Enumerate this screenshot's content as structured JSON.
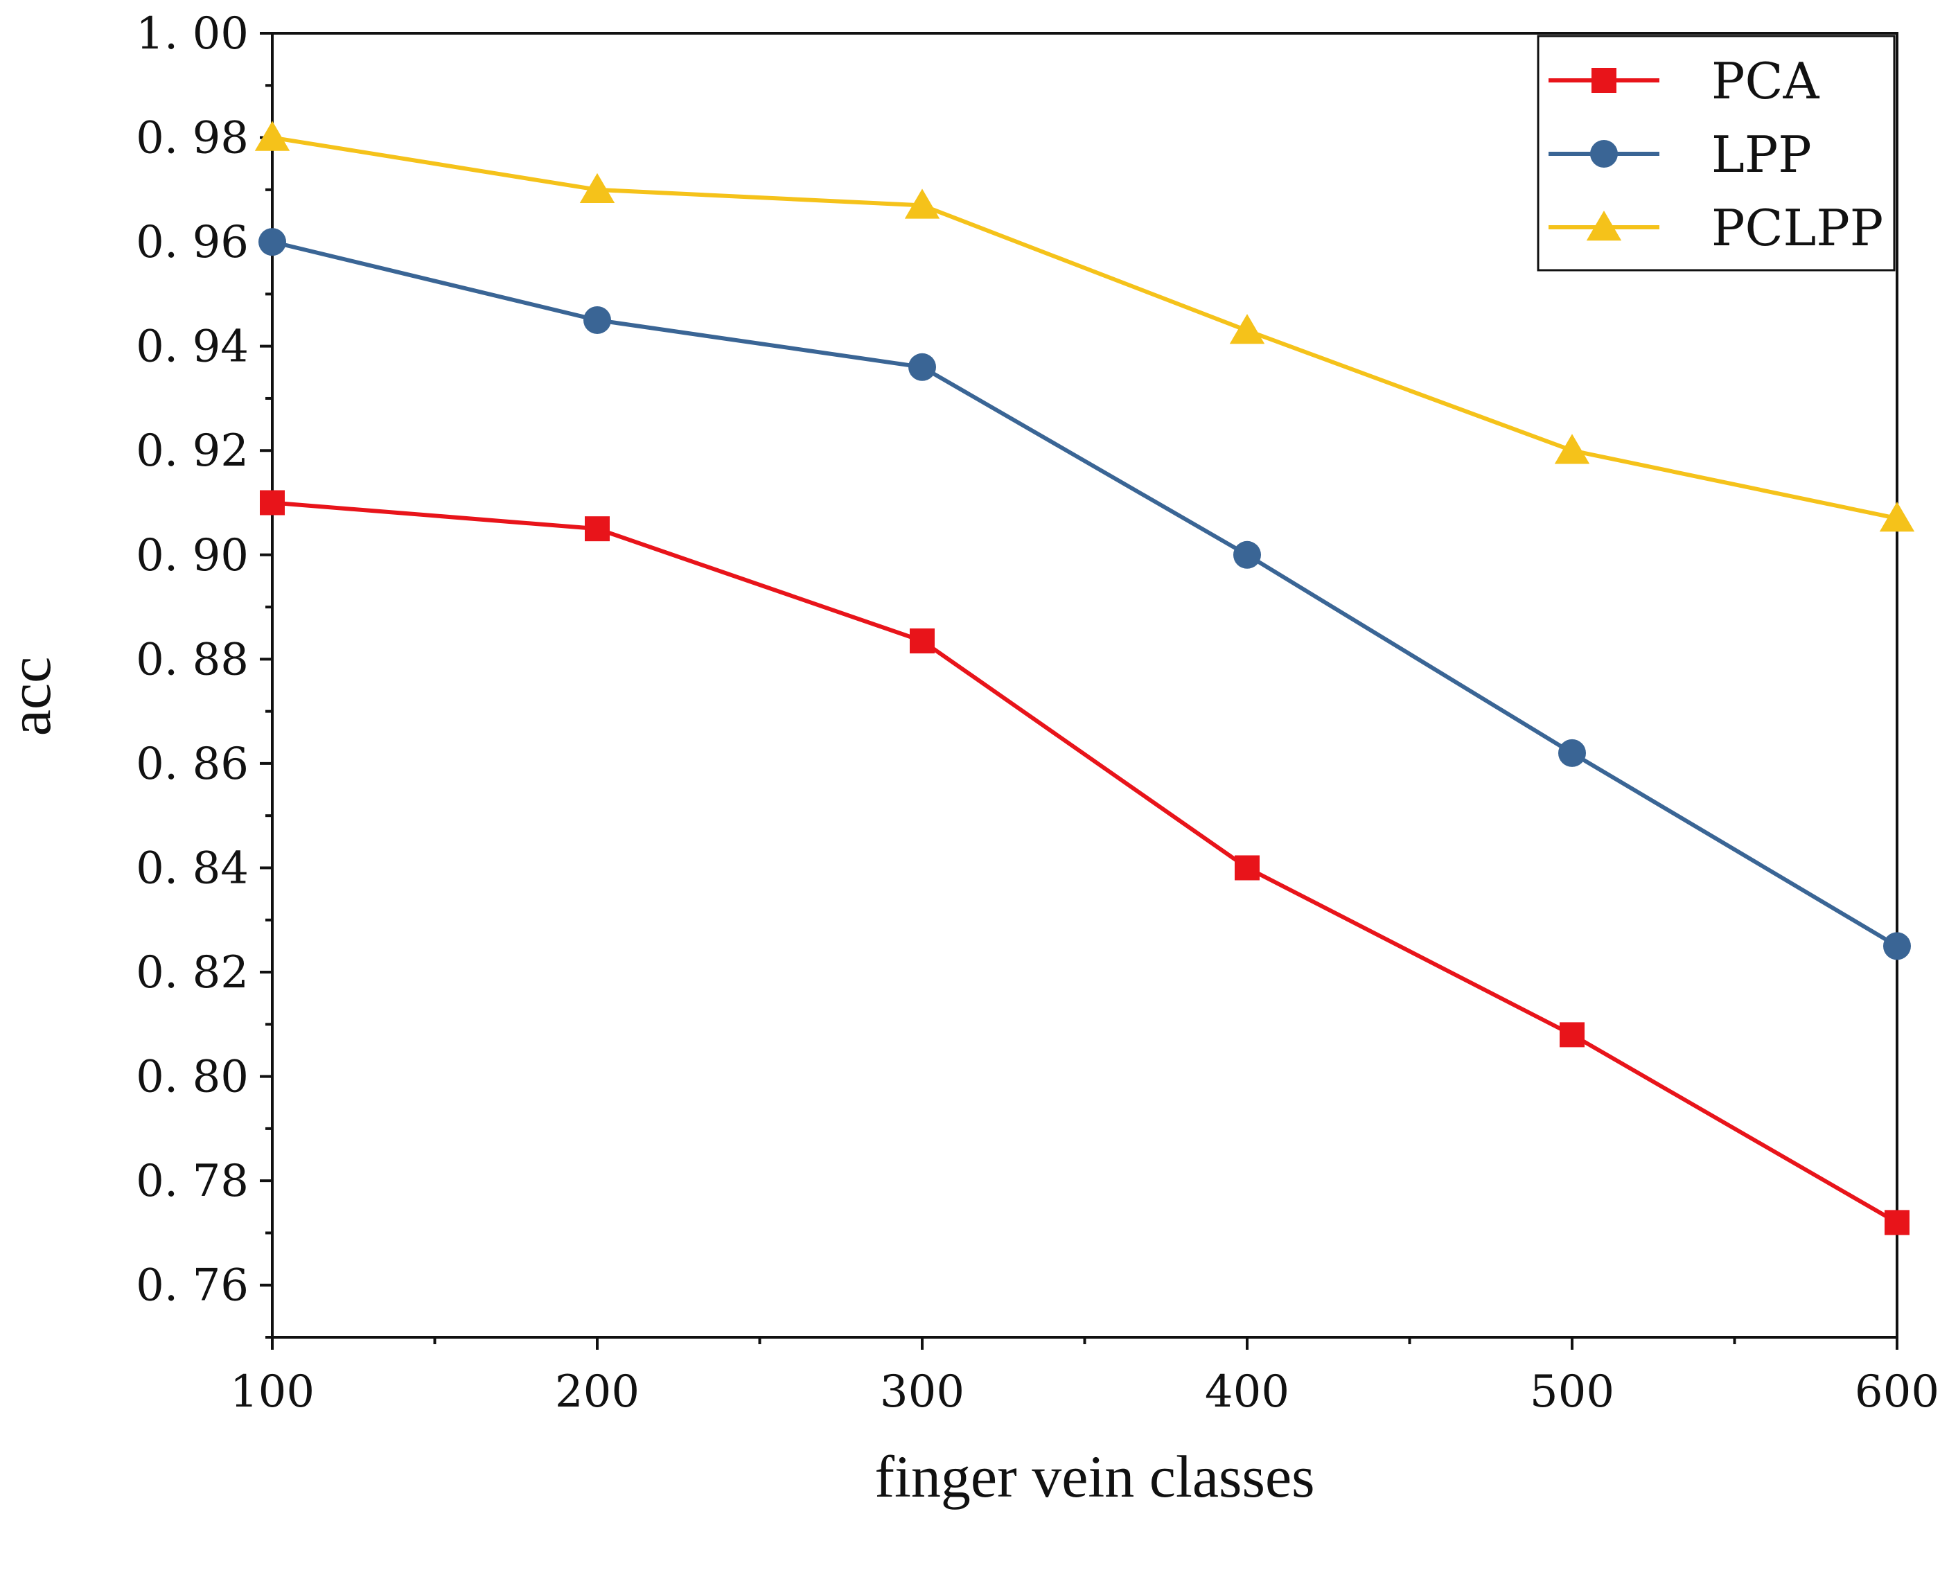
{
  "chart_data": {
    "type": "line",
    "title": "",
    "xlabel": "finger vein classes",
    "ylabel": "acc",
    "x": [
      100,
      200,
      300,
      400,
      500,
      600
    ],
    "xlim": [
      100,
      600
    ],
    "ylim": [
      0.75,
      1.0
    ],
    "x_ticks": [
      100,
      200,
      300,
      400,
      500,
      600
    ],
    "x_tick_labels": [
      "100",
      "200",
      "300",
      "400",
      "500",
      "600"
    ],
    "y_ticks": [
      0.76,
      0.78,
      0.8,
      0.82,
      0.84,
      0.86,
      0.88,
      0.9,
      0.92,
      0.94,
      0.96,
      0.98,
      1.0
    ],
    "y_tick_labels": [
      "0. 76",
      "0. 78",
      "0. 80",
      "0. 82",
      "0. 84",
      "0. 86",
      "0. 88",
      "0. 90",
      "0. 92",
      "0. 94",
      "0. 96",
      "0. 98",
      "1. 00"
    ],
    "grid": false,
    "legend_position": "top-right",
    "series": [
      {
        "name": "PCA",
        "color": "#e8141a",
        "marker": "square",
        "values": [
          0.91,
          0.905,
          0.8835,
          0.84,
          0.808,
          0.772
        ]
      },
      {
        "name": "LPP",
        "color": "#3a6595",
        "marker": "circle",
        "values": [
          0.96,
          0.945,
          0.936,
          0.9,
          0.862,
          0.825
        ]
      },
      {
        "name": "PCLPP",
        "color": "#f5c21a",
        "marker": "triangle",
        "values": [
          0.98,
          0.97,
          0.967,
          0.943,
          0.92,
          0.907
        ]
      }
    ]
  }
}
